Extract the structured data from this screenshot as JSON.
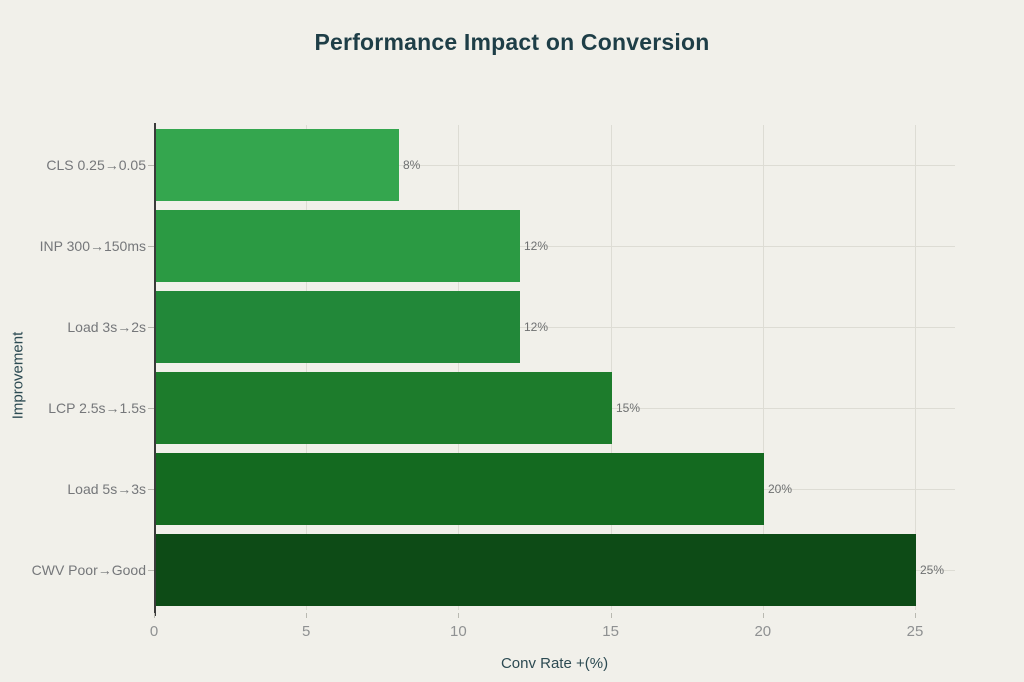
{
  "chart_data": {
    "type": "bar",
    "orientation": "horizontal",
    "title": "Performance Impact on Conversion",
    "xlabel": "Conv Rate +(%)",
    "ylabel": "Improvement",
    "categories": [
      "CLS 0.25→0.05",
      "INP 300→150ms",
      "Load 3s→2s",
      "LCP 2.5s→1.5s",
      "Load 5s→3s",
      "CWV Poor→Good"
    ],
    "values": [
      8,
      12,
      12,
      15,
      20,
      25
    ],
    "value_labels": [
      "8%",
      "12%",
      "12%",
      "15%",
      "20%",
      "25%"
    ],
    "bar_colors": [
      "#34a64e",
      "#2b9a43",
      "#228839",
      "#1d7c2c",
      "#146a20",
      "#0d4b16"
    ],
    "x_ticks": [
      0,
      5,
      10,
      15,
      20,
      25
    ],
    "xlim": [
      0,
      26.3
    ],
    "grid": true,
    "legend": false
  },
  "colors": {
    "background": "#f1f0ea",
    "title_text": "#1e3e47",
    "axis_title_text": "#2c4a52",
    "axis_line": "#3a3a3a",
    "gridline": "#dddcd4",
    "tick_label": "#8f9192",
    "category_label": "#75777a",
    "value_label": "#6e7071"
  }
}
